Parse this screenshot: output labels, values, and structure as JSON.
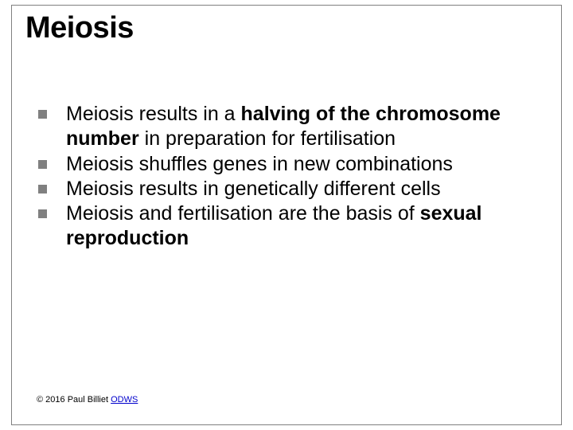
{
  "slide": {
    "title": "Meiosis",
    "title_color": "#000000",
    "title_fontsize": 38,
    "frame_border_color": "#808080",
    "background_color": "#ffffff",
    "bullet_color": "#808080",
    "bullet_size": 11,
    "body_fontsize": 25,
    "body_color": "#000000",
    "bullets": [
      {
        "prefix": "Meiosis results in a ",
        "bold1": "halving of the chromosome number",
        "mid": " in preparation for fertilisation",
        "bold2": "",
        "suffix": ""
      },
      {
        "prefix": "Meiosis shuffles genes in new combinations",
        "bold1": "",
        "mid": "",
        "bold2": "",
        "suffix": ""
      },
      {
        "prefix": "Meiosis results in genetically different cells",
        "bold1": "",
        "mid": "",
        "bold2": "",
        "suffix": ""
      },
      {
        "prefix": "Meiosis and fertilisation are the basis of ",
        "bold1": "sexual reproduction",
        "mid": "",
        "bold2": "",
        "suffix": ""
      }
    ],
    "footer": {
      "text": "© 2016 Paul Billiet ",
      "link_text": "ODWS",
      "link_color": "#0000cc",
      "fontsize": 11
    }
  }
}
